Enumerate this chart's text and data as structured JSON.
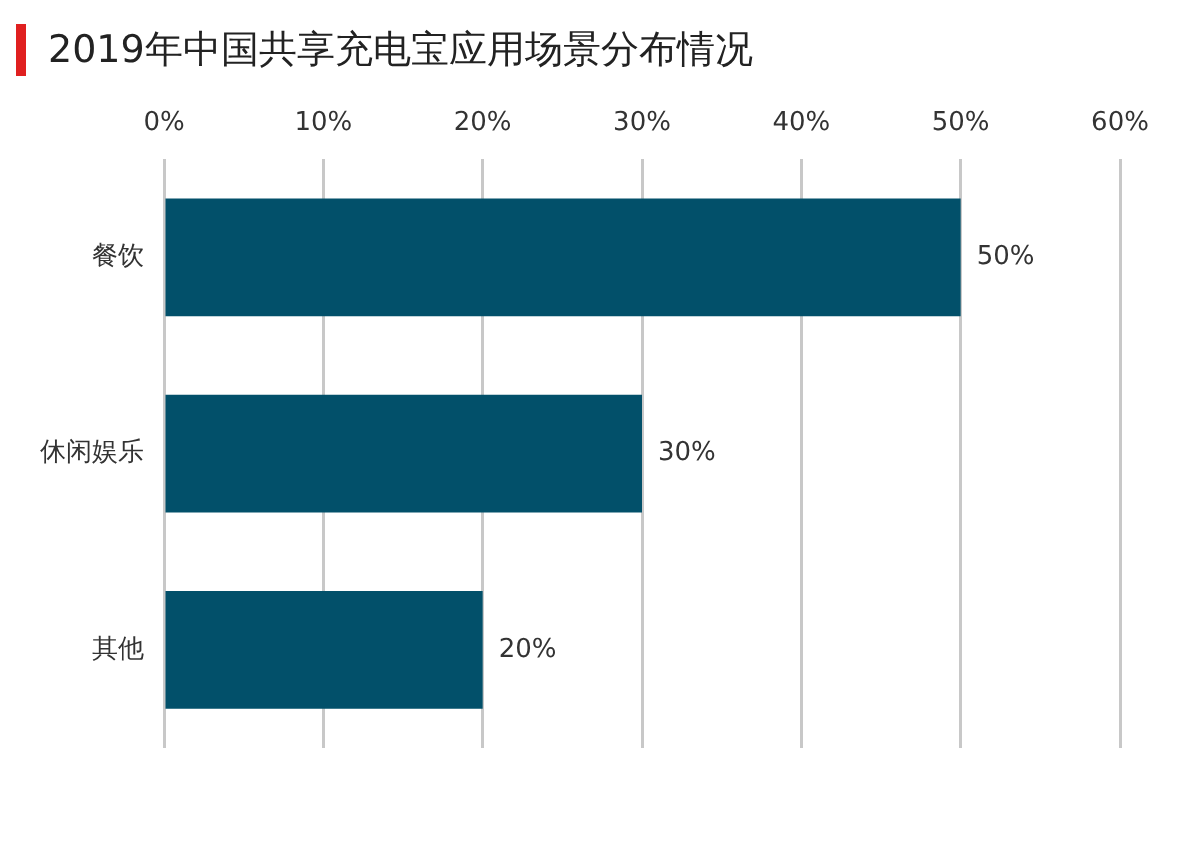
{
  "chart_data": {
    "type": "bar",
    "orientation": "horizontal",
    "title": "2019年中国共享充电宝应用场景分布情况",
    "categories": [
      "餐饮",
      "休闲娱乐",
      "其他"
    ],
    "values": [
      50,
      30,
      20
    ],
    "color": "#02506a",
    "value_labels": [
      "50%",
      "30%",
      "20%"
    ],
    "xlim": [
      0,
      60
    ],
    "xticks": [
      {
        "value": 0,
        "label": "0%"
      },
      {
        "value": 10,
        "label": "10%"
      },
      {
        "value": 20,
        "label": "20%"
      },
      {
        "value": 30,
        "label": "30%"
      },
      {
        "value": 40,
        "label": "40%"
      },
      {
        "value": 50,
        "label": "50%"
      },
      {
        "value": 60,
        "label": "60%"
      }
    ],
    "grid": "x",
    "legend": false
  }
}
